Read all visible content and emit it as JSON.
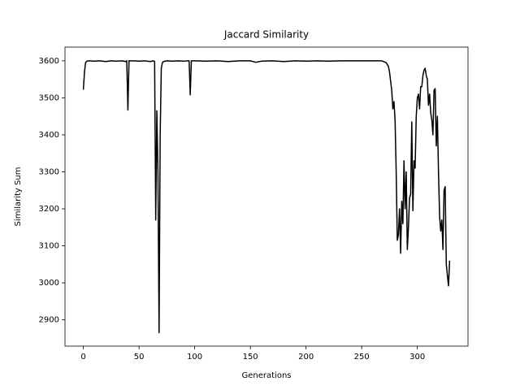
{
  "chart_data": {
    "type": "line",
    "title": "Jaccard Similarity",
    "x_label": "Generations",
    "y_label": "Similarity Sum",
    "color": "#000000",
    "x": [
      0,
      1,
      2,
      3,
      5,
      10,
      15,
      20,
      25,
      30,
      35,
      38,
      39,
      40,
      41,
      45,
      50,
      55,
      60,
      63,
      64,
      65,
      66,
      67,
      68,
      69,
      70,
      71,
      72,
      75,
      80,
      85,
      90,
      94,
      95,
      96,
      97,
      100,
      110,
      120,
      130,
      140,
      150,
      155,
      160,
      170,
      180,
      190,
      200,
      210,
      220,
      230,
      240,
      250,
      260,
      268,
      272,
      274,
      275,
      276,
      277,
      278,
      279,
      280,
      281,
      282,
      283,
      284,
      285,
      286,
      287,
      288,
      289,
      290,
      291,
      292,
      293,
      294,
      295,
      296,
      297,
      298,
      299,
      300,
      301,
      302,
      303,
      304,
      305,
      306,
      307,
      308,
      309,
      310,
      311,
      312,
      313,
      314,
      315,
      316,
      317,
      318,
      319,
      320,
      321,
      322,
      323,
      324,
      325,
      326,
      327,
      328,
      329
    ],
    "values": [
      3522,
      3570,
      3595,
      3599,
      3600,
      3599,
      3600,
      3598,
      3600,
      3599,
      3600,
      3598,
      3600,
      3467,
      3600,
      3600,
      3599,
      3600,
      3598,
      3600,
      3598,
      3170,
      3465,
      3300,
      2865,
      3400,
      3580,
      3595,
      3598,
      3600,
      3599,
      3600,
      3599,
      3600,
      3600,
      3508,
      3600,
      3600,
      3599,
      3600,
      3598,
      3600,
      3600,
      3596,
      3599,
      3600,
      3598,
      3600,
      3599,
      3600,
      3599,
      3600,
      3600,
      3600,
      3600,
      3600,
      3595,
      3585,
      3570,
      3545,
      3520,
      3470,
      3490,
      3440,
      3300,
      3115,
      3130,
      3200,
      3080,
      3220,
      3160,
      3330,
      3200,
      3300,
      3090,
      3150,
      3230,
      3240,
      3435,
      3195,
      3330,
      3310,
      3450,
      3500,
      3510,
      3470,
      3530,
      3530,
      3560,
      3575,
      3580,
      3560,
      3550,
      3480,
      3510,
      3460,
      3440,
      3400,
      3520,
      3525,
      3370,
      3450,
      3300,
      3180,
      3140,
      3170,
      3090,
      3250,
      3260,
      3050,
      3020,
      2992,
      3060
    ],
    "xlim": [
      -16.5,
      345.5
    ],
    "ylim": [
      2829,
      3637
    ],
    "xticks": [
      0,
      50,
      100,
      150,
      200,
      250,
      300
    ],
    "yticks": [
      2900,
      3000,
      3100,
      3200,
      3300,
      3400,
      3500,
      3600
    ]
  }
}
